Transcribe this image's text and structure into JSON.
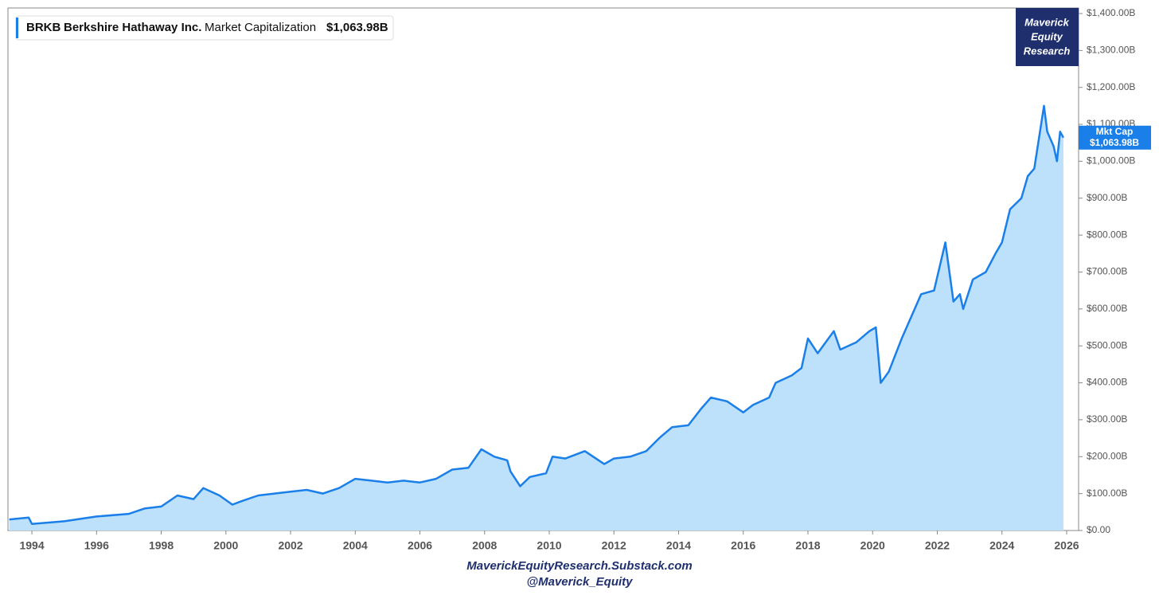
{
  "chart_data": {
    "type": "area",
    "ticker": "BRKB",
    "company": "Berkshire Hathaway Inc.",
    "current_value": "$1,063.98B",
    "badge_title": "Mkt Cap",
    "logo": [
      "Maverick",
      "Equity",
      "Research"
    ],
    "footer": [
      "MaverickEquityResearch.Substack.com",
      "@Maverick_Equity"
    ],
    "x": [
      1993.3,
      1993.9,
      1994.0,
      1995.0,
      1996.0,
      1997.0,
      1997.5,
      1998.0,
      1998.5,
      1999.0,
      1999.3,
      1999.8,
      2000.2,
      2000.5,
      2001.0,
      2002.0,
      2002.5,
      2003.0,
      2003.5,
      2004.0,
      2004.5,
      2005.0,
      2005.5,
      2006.0,
      2006.5,
      2007.0,
      2007.5,
      2007.9,
      2008.3,
      2008.7,
      2008.8,
      2009.1,
      2009.4,
      2009.9,
      2010.1,
      2010.5,
      2011.1,
      2011.7,
      2012.0,
      2012.5,
      2013.0,
      2013.4,
      2013.8,
      2014.3,
      2014.7,
      2015.0,
      2015.5,
      2016.0,
      2016.3,
      2016.8,
      2017.0,
      2017.5,
      2017.8,
      2018.0,
      2018.3,
      2018.8,
      2019.0,
      2019.5,
      2019.9,
      2020.1,
      2020.25,
      2020.5,
      2020.9,
      2021.2,
      2021.5,
      2021.9,
      2022.25,
      2022.5,
      2022.7,
      2022.8,
      2023.1,
      2023.5,
      2023.8,
      2024.0,
      2024.25,
      2024.6,
      2024.8,
      2025.0,
      2025.3,
      2025.4,
      2025.6,
      2025.7,
      2025.8,
      2025.9
    ],
    "series": [
      {
        "name": "Market Capitalization",
        "color": "#1a7fe8",
        "fill": "#bde0fb",
        "values": [
          30,
          35,
          18,
          25,
          38,
          45,
          60,
          65,
          95,
          85,
          115,
          95,
          70,
          80,
          95,
          105,
          110,
          100,
          115,
          140,
          135,
          130,
          135,
          130,
          140,
          165,
          170,
          220,
          200,
          190,
          160,
          120,
          145,
          155,
          200,
          195,
          215,
          180,
          195,
          200,
          215,
          250,
          280,
          285,
          330,
          360,
          350,
          320,
          340,
          360,
          400,
          420,
          440,
          520,
          480,
          540,
          490,
          510,
          540,
          550,
          400,
          430,
          520,
          580,
          640,
          650,
          780,
          620,
          640,
          600,
          680,
          700,
          750,
          780,
          870,
          900,
          960,
          980,
          1150,
          1080,
          1040,
          1000,
          1080,
          1063.98
        ]
      }
    ],
    "xlim": [
      1993.26,
      2026.37
    ],
    "xticks": [
      1994,
      1996,
      1998,
      2000,
      2002,
      2004,
      2006,
      2008,
      2010,
      2012,
      2014,
      2016,
      2018,
      2020,
      2022,
      2024,
      2026
    ],
    "ylim": [
      0,
      1400
    ],
    "yticks": [
      {
        "value": 0,
        "label": "$0.00"
      },
      {
        "value": 100,
        "label": "$100.00B"
      },
      {
        "value": 200,
        "label": "$200.00B"
      },
      {
        "value": 300,
        "label": "$300.00B"
      },
      {
        "value": 400,
        "label": "$400.00B"
      },
      {
        "value": 500,
        "label": "$500.00B"
      },
      {
        "value": 600,
        "label": "$600.00B"
      },
      {
        "value": 700,
        "label": "$700.00B"
      },
      {
        "value": 800,
        "label": "$800.00B"
      },
      {
        "value": 900,
        "label": "$900.00B"
      },
      {
        "value": 1000,
        "label": "$1,000.00B"
      },
      {
        "value": 1100,
        "label": "$1,100.00B"
      },
      {
        "value": 1200,
        "label": "$1,200.00B"
      },
      {
        "value": 1300,
        "label": "$1,300.00B"
      },
      {
        "value": 1400,
        "label": "$1,400.00B"
      }
    ],
    "grid": false
  }
}
